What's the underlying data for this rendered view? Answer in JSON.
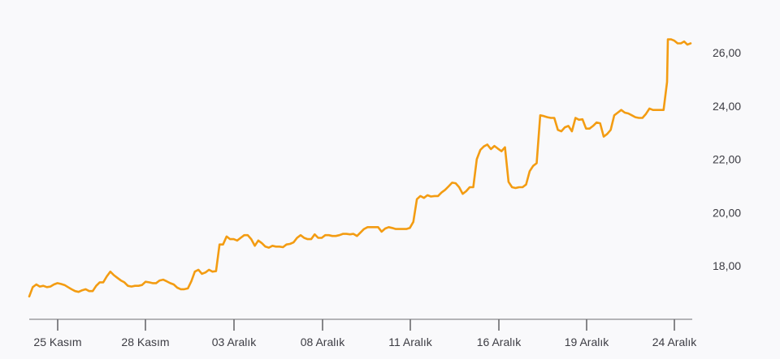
{
  "chart_data": {
    "type": "line",
    "title": "",
    "xlabel": "",
    "ylabel": "",
    "x_ticks": [
      "25 Kasım",
      "28 Kasım",
      "03 Aralık",
      "08 Aralık",
      "11 Aralık",
      "16 Aralık",
      "19 Aralık",
      "24 Aralık"
    ],
    "y_ticks": [
      "18,00",
      "20,00",
      "22,00",
      "24,00",
      "26,00"
    ],
    "y_tick_values": [
      18,
      20,
      22,
      24,
      26
    ],
    "ylim": [
      16.1,
      26.8
    ],
    "grid": false,
    "colors": {
      "line": "#f39c12",
      "background": "#f9f9fb"
    },
    "series": [
      {
        "x": [
          0.0,
          0.04,
          0.08,
          0.12,
          0.16,
          0.2,
          0.24,
          0.28,
          0.32,
          0.36,
          0.4,
          0.44,
          0.48,
          0.52,
          0.56,
          0.6,
          0.64,
          0.68,
          0.72,
          0.76,
          0.8,
          0.84,
          0.88,
          0.92,
          0.96,
          1.0,
          1.04,
          1.08,
          1.12,
          1.16,
          1.2,
          1.24,
          1.28,
          1.32,
          1.36,
          1.4,
          1.44,
          1.48,
          1.52,
          1.56,
          1.6,
          1.64,
          1.68,
          1.72,
          1.76,
          1.8,
          1.84,
          1.88,
          1.92,
          1.96,
          2.0,
          2.04,
          2.08,
          2.12,
          2.16,
          2.2,
          2.24,
          2.28,
          2.32,
          2.36,
          2.4,
          2.44,
          2.48,
          2.52,
          2.56,
          2.6,
          2.64,
          2.68,
          2.72,
          2.76,
          2.8,
          2.84,
          2.88,
          2.92,
          2.96,
          3.0,
          3.04,
          3.08,
          3.12,
          3.16,
          3.2,
          3.24,
          3.28,
          3.32,
          3.36,
          3.4,
          3.44,
          3.48,
          3.52,
          3.56,
          3.6,
          3.64,
          3.68,
          3.72,
          3.76,
          3.8,
          3.84,
          3.88,
          3.92,
          3.96,
          4.0,
          4.04,
          4.08,
          4.12,
          4.16,
          4.2,
          4.24,
          4.28,
          4.32,
          4.36,
          4.4,
          4.44,
          4.48,
          4.52,
          4.56,
          4.6,
          4.64,
          4.68,
          4.72,
          4.76,
          4.8,
          4.84,
          4.88,
          4.92,
          4.96,
          5.0,
          5.04,
          5.08,
          5.12,
          5.16,
          5.2,
          5.24,
          5.28,
          5.32,
          5.36,
          5.4,
          5.44,
          5.48,
          5.52,
          5.56,
          5.6,
          5.64,
          5.68,
          5.72,
          5.76,
          5.8,
          5.84,
          5.88,
          5.92,
          5.96,
          6.0,
          6.04,
          6.08,
          6.12,
          6.16,
          6.2,
          6.24,
          6.28,
          6.32,
          6.36,
          6.4,
          6.44,
          6.48,
          6.52,
          6.56,
          6.6,
          6.64,
          6.68,
          6.72,
          6.76,
          6.8,
          6.84,
          6.88,
          6.92,
          6.96,
          7.0,
          7.04,
          7.08,
          7.12,
          7.16,
          7.2,
          7.24
        ],
        "values": [
          16.85,
          17.2,
          17.3,
          17.22,
          17.25,
          17.2,
          17.22,
          17.3,
          17.35,
          17.32,
          17.28,
          17.2,
          17.12,
          17.05,
          17.02,
          17.08,
          17.12,
          17.05,
          17.05,
          17.25,
          17.38,
          17.38,
          17.6,
          17.78,
          17.65,
          17.55,
          17.45,
          17.38,
          17.25,
          17.22,
          17.25,
          17.25,
          17.28,
          17.4,
          17.38,
          17.35,
          17.35,
          17.45,
          17.48,
          17.42,
          17.35,
          17.3,
          17.18,
          17.12,
          17.12,
          17.15,
          17.42,
          17.78,
          17.85,
          17.7,
          17.75,
          17.85,
          17.78,
          17.8,
          18.8,
          18.8,
          19.1,
          19.0,
          19.0,
          18.95,
          19.05,
          19.15,
          19.15,
          19.0,
          18.75,
          18.95,
          18.85,
          18.72,
          18.68,
          18.75,
          18.72,
          18.72,
          18.7,
          18.8,
          18.82,
          18.88,
          19.05,
          19.15,
          19.05,
          19.0,
          19.0,
          19.18,
          19.05,
          19.05,
          19.15,
          19.15,
          19.12,
          19.12,
          19.15,
          19.2,
          19.2,
          19.18,
          19.2,
          19.12,
          19.25,
          19.38,
          19.45,
          19.45,
          19.45,
          19.45,
          19.28,
          19.4,
          19.45,
          19.42,
          19.38,
          19.38,
          19.38,
          19.38,
          19.42,
          19.65,
          20.5,
          20.62,
          20.55,
          20.65,
          20.6,
          20.62,
          20.62,
          20.75,
          20.85,
          20.98,
          21.12,
          21.1,
          20.95,
          20.7,
          20.8,
          20.95,
          20.95,
          22.0,
          22.35,
          22.48,
          22.55,
          22.38,
          22.5,
          22.4,
          22.3,
          22.45,
          21.15,
          20.95,
          20.92,
          20.95,
          20.95,
          21.05,
          21.55,
          21.75,
          21.85,
          23.65,
          23.62,
          23.58,
          23.55,
          23.55,
          23.1,
          23.05,
          23.2,
          23.25,
          23.05,
          23.55,
          23.48,
          23.5,
          23.15,
          23.15,
          23.25,
          23.38,
          23.35,
          22.85,
          22.95,
          23.1,
          23.65,
          23.75,
          23.85,
          23.75,
          23.72,
          23.65,
          23.58,
          23.55,
          23.55,
          23.7,
          23.9,
          23.85,
          23.85,
          23.85,
          23.85,
          24.9
        ]
      }
    ]
  }
}
